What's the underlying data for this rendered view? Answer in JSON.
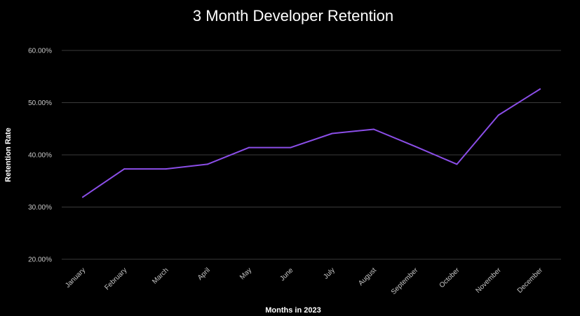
{
  "chart_data": {
    "type": "line",
    "title": "3 Month Developer Retention",
    "xlabel": "Months in 2023",
    "ylabel": "Retention Rate",
    "categories": [
      "January",
      "February",
      "March",
      "April",
      "May",
      "June",
      "July",
      "August",
      "September",
      "October",
      "November",
      "December"
    ],
    "series": [
      {
        "name": "Retention Rate",
        "color": "#8b4ee8",
        "values": [
          31.9,
          37.3,
          37.3,
          38.2,
          41.4,
          41.4,
          44.1,
          44.9,
          41.6,
          38.2,
          47.6,
          52.6
        ]
      }
    ],
    "ylim": [
      20,
      60
    ],
    "yticks": [
      "20.00%",
      "30.00%",
      "40.00%",
      "50.00%",
      "60.00%"
    ],
    "ytick_values": [
      20,
      30,
      40,
      50,
      60
    ],
    "grid": true,
    "legend": "none"
  }
}
